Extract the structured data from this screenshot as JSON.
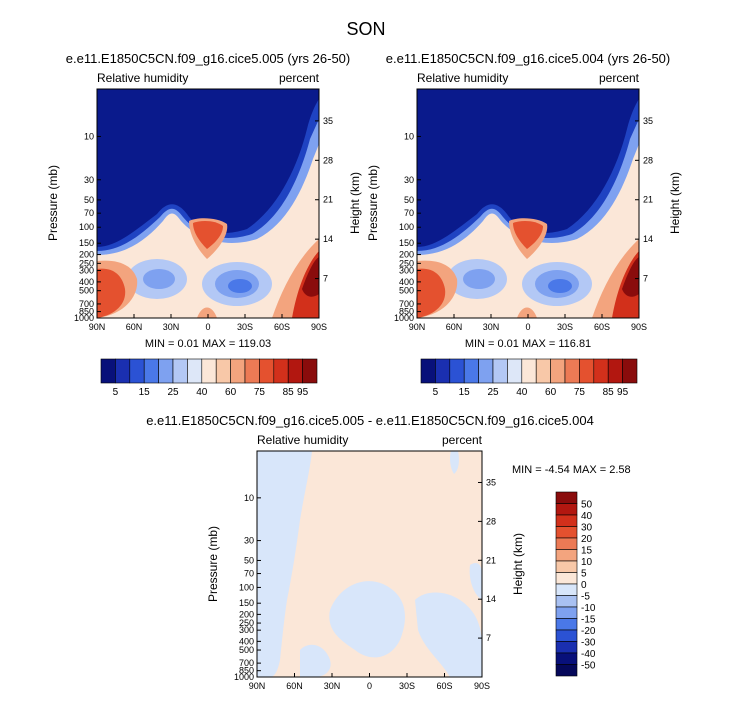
{
  "figure_title": "SON",
  "chart_data": [
    {
      "type": "heatmap",
      "title": "e.e11.E1850C5CN.f09_g16.cice5.005 (yrs 26-50)",
      "left_label": "Relative humidity",
      "right_label": "percent",
      "ylabel": "Pressure (mb)",
      "ylabel2": "Height (km)",
      "x_ticks": [
        "90N",
        "60N",
        "30N",
        "0",
        "30S",
        "60S",
        "90S"
      ],
      "y_ticks": [
        "10",
        "30",
        "50",
        "70",
        "100",
        "150",
        "200",
        "250",
        "300",
        "400",
        "500",
        "700",
        "850",
        "1000"
      ],
      "y2_ticks": [
        "35",
        "28",
        "21",
        "14",
        "7"
      ],
      "stats": "MIN =  0.01   MAX = 119.03"
    },
    {
      "type": "heatmap",
      "title": "e.e11.E1850C5CN.f09_g16.cice5.004 (yrs 26-50)",
      "left_label": "Relative humidity",
      "right_label": "percent",
      "ylabel": "Pressure (mb)",
      "ylabel2": "Height (km)",
      "x_ticks": [
        "90N",
        "60N",
        "30N",
        "0",
        "30S",
        "60S",
        "90S"
      ],
      "y_ticks": [
        "10",
        "30",
        "50",
        "70",
        "100",
        "150",
        "200",
        "250",
        "300",
        "400",
        "500",
        "700",
        "850",
        "1000"
      ],
      "y2_ticks": [
        "35",
        "28",
        "21",
        "14",
        "7"
      ],
      "stats": "MIN =  0.01   MAX = 116.81"
    },
    {
      "type": "heatmap",
      "title": "e.e11.E1850C5CN.f09_g16.cice5.005 - e.e11.E1850C5CN.f09_g16.cice5.004",
      "left_label": "Relative humidity",
      "right_label": "percent",
      "ylabel": "Pressure (mb)",
      "ylabel2": "Height (km)",
      "x_ticks": [
        "90N",
        "60N",
        "30N",
        "0",
        "30S",
        "60S",
        "90S"
      ],
      "y_ticks": [
        "10",
        "30",
        "50",
        "70",
        "100",
        "150",
        "200",
        "250",
        "300",
        "400",
        "500",
        "700",
        "850",
        "1000"
      ],
      "y2_ticks": [
        "35",
        "28",
        "21",
        "14",
        "7"
      ],
      "stats": "MIN = -4.54   MAX =  2.58"
    }
  ],
  "abs_colorbar": {
    "labels": [
      "5",
      "15",
      "25",
      "40",
      "60",
      "75",
      "85",
      "95"
    ],
    "colors": [
      "#08107a",
      "#1a2fb0",
      "#2b52d4",
      "#4a78e8",
      "#7ea1f0",
      "#b3c8f5",
      "#dde7f8",
      "#fbe7d8",
      "#f8c8a8",
      "#f3a47e",
      "#ec7a55",
      "#e4512f",
      "#d2301b",
      "#b21710",
      "#8a0c0c"
    ]
  },
  "diff_colorbar": {
    "labels": [
      "50",
      "40",
      "30",
      "20",
      "15",
      "10",
      "5",
      "0",
      "-5",
      "-10",
      "-15",
      "-20",
      "-30",
      "-40",
      "-50"
    ],
    "colors": [
      "#8a0c0c",
      "#b21710",
      "#d2301b",
      "#e4512f",
      "#ec7a55",
      "#f3a47e",
      "#f8c8a8",
      "#fbe7d8",
      "#d8e6fa",
      "#a9c1f2",
      "#7ea1f0",
      "#4a78e8",
      "#2b52d4",
      "#1a2fb0",
      "#08107a",
      "#05085a"
    ]
  }
}
